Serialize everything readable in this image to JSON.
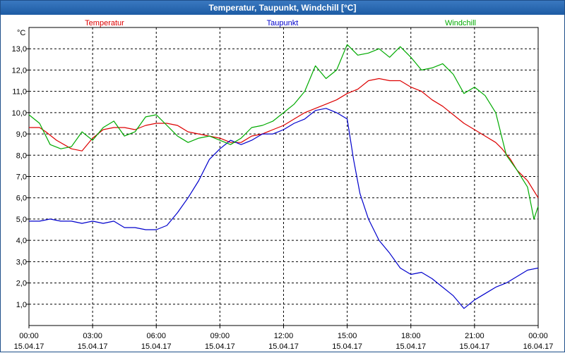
{
  "window": {
    "title": "Temperatur, Taupunkt, Windchill [°C]"
  },
  "chart_data": {
    "type": "line",
    "title": "Temperatur, Taupunkt, Windchill [°C]",
    "ylabel": "°C",
    "ylim": [
      0,
      14
    ],
    "yticks": [
      "1,0",
      "2,0",
      "3,0",
      "4,0",
      "5,0",
      "6,0",
      "7,0",
      "8,0",
      "9,0",
      "10,0",
      "11,0",
      "12,0",
      "13,0"
    ],
    "xlim_hours": [
      0,
      24
    ],
    "xticks": [
      {
        "time": "00:00",
        "date": "15.04.17"
      },
      {
        "time": "03:00",
        "date": "15.04.17"
      },
      {
        "time": "06:00",
        "date": "15.04.17"
      },
      {
        "time": "09:00",
        "date": "15.04.17"
      },
      {
        "time": "12:00",
        "date": "15.04.17"
      },
      {
        "time": "15:00",
        "date": "15.04.17"
      },
      {
        "time": "18:00",
        "date": "15.04.17"
      },
      {
        "time": "21:00",
        "date": "15.04.17"
      },
      {
        "time": "00:00",
        "date": "16.04.17"
      }
    ],
    "grid": true,
    "legend_position": "top",
    "series": [
      {
        "name": "Temperatur",
        "color": "#dd0000",
        "points": [
          [
            0,
            9.3
          ],
          [
            0.5,
            9.3
          ],
          [
            0.8,
            9.1
          ],
          [
            1.3,
            8.7
          ],
          [
            2,
            8.3
          ],
          [
            2.5,
            8.2
          ],
          [
            3,
            8.8
          ],
          [
            3.5,
            9.2
          ],
          [
            4,
            9.3
          ],
          [
            4.5,
            9.3
          ],
          [
            5,
            9.2
          ],
          [
            5.5,
            9.4
          ],
          [
            6,
            9.5
          ],
          [
            6.5,
            9.5
          ],
          [
            7,
            9.4
          ],
          [
            7.5,
            9.1
          ],
          [
            8,
            9.0
          ],
          [
            8.5,
            8.9
          ],
          [
            9,
            8.8
          ],
          [
            9.5,
            8.6
          ],
          [
            10,
            8.6
          ],
          [
            10.5,
            8.9
          ],
          [
            11,
            9.0
          ],
          [
            11.5,
            9.2
          ],
          [
            12,
            9.4
          ],
          [
            12.5,
            9.7
          ],
          [
            13,
            10.0
          ],
          [
            13.5,
            10.2
          ],
          [
            14,
            10.4
          ],
          [
            14.5,
            10.6
          ],
          [
            15,
            10.9
          ],
          [
            15.5,
            11.1
          ],
          [
            16,
            11.5
          ],
          [
            16.5,
            11.6
          ],
          [
            17,
            11.5
          ],
          [
            17.5,
            11.5
          ],
          [
            18,
            11.2
          ],
          [
            18.5,
            11.0
          ],
          [
            19,
            10.6
          ],
          [
            19.5,
            10.3
          ],
          [
            20,
            9.9
          ],
          [
            20.5,
            9.5
          ],
          [
            21,
            9.2
          ],
          [
            21.5,
            8.9
          ],
          [
            22,
            8.6
          ],
          [
            22.3,
            8.3
          ],
          [
            22.7,
            7.8
          ],
          [
            23,
            7.3
          ],
          [
            23.5,
            6.8
          ],
          [
            24,
            6.0
          ]
        ]
      },
      {
        "name": "Taupunkt",
        "color": "#0000cc",
        "points": [
          [
            0,
            4.9
          ],
          [
            0.5,
            4.9
          ],
          [
            1,
            5.0
          ],
          [
            1.5,
            4.9
          ],
          [
            2,
            4.9
          ],
          [
            2.5,
            4.8
          ],
          [
            3,
            4.9
          ],
          [
            3.5,
            4.8
          ],
          [
            4,
            4.9
          ],
          [
            4.5,
            4.6
          ],
          [
            5,
            4.6
          ],
          [
            5.5,
            4.5
          ],
          [
            6,
            4.5
          ],
          [
            6.5,
            4.7
          ],
          [
            7,
            5.3
          ],
          [
            7.5,
            6.0
          ],
          [
            8,
            6.8
          ],
          [
            8.5,
            7.8
          ],
          [
            9,
            8.3
          ],
          [
            9.5,
            8.7
          ],
          [
            10,
            8.5
          ],
          [
            10.5,
            8.7
          ],
          [
            11,
            9.0
          ],
          [
            11.5,
            9.0
          ],
          [
            12,
            9.2
          ],
          [
            12.5,
            9.5
          ],
          [
            13,
            9.7
          ],
          [
            13.5,
            10.1
          ],
          [
            14,
            10.2
          ],
          [
            14.5,
            10.0
          ],
          [
            15,
            9.7
          ],
          [
            15.3,
            7.8
          ],
          [
            15.6,
            6.2
          ],
          [
            16,
            5.0
          ],
          [
            16.5,
            4.0
          ],
          [
            17,
            3.4
          ],
          [
            17.5,
            2.7
          ],
          [
            18,
            2.4
          ],
          [
            18.5,
            2.5
          ],
          [
            19,
            2.2
          ],
          [
            19.5,
            1.8
          ],
          [
            20,
            1.4
          ],
          [
            20.5,
            0.8
          ],
          [
            21,
            1.2
          ],
          [
            21.5,
            1.5
          ],
          [
            22,
            1.8
          ],
          [
            22.5,
            2.0
          ],
          [
            23,
            2.3
          ],
          [
            23.5,
            2.6
          ],
          [
            24,
            2.7
          ]
        ]
      },
      {
        "name": "Windchill",
        "color": "#00aa00",
        "points": [
          [
            0,
            9.9
          ],
          [
            0.5,
            9.5
          ],
          [
            1,
            8.5
          ],
          [
            1.5,
            8.3
          ],
          [
            2,
            8.4
          ],
          [
            2.5,
            9.1
          ],
          [
            3,
            8.7
          ],
          [
            3.5,
            9.3
          ],
          [
            4,
            9.6
          ],
          [
            4.5,
            8.9
          ],
          [
            5,
            9.1
          ],
          [
            5.5,
            9.8
          ],
          [
            6,
            9.9
          ],
          [
            6.5,
            9.4
          ],
          [
            7,
            8.9
          ],
          [
            7.5,
            8.6
          ],
          [
            8,
            8.8
          ],
          [
            8.5,
            8.9
          ],
          [
            9,
            8.7
          ],
          [
            9.5,
            8.5
          ],
          [
            10,
            8.8
          ],
          [
            10.5,
            9.3
          ],
          [
            11,
            9.4
          ],
          [
            11.5,
            9.6
          ],
          [
            12,
            10.0
          ],
          [
            12.5,
            10.4
          ],
          [
            13,
            11.0
          ],
          [
            13.5,
            12.2
          ],
          [
            14,
            11.6
          ],
          [
            14.5,
            12.0
          ],
          [
            15,
            13.2
          ],
          [
            15.5,
            12.7
          ],
          [
            16,
            12.8
          ],
          [
            16.5,
            13.0
          ],
          [
            17,
            12.6
          ],
          [
            17.5,
            13.1
          ],
          [
            18,
            12.6
          ],
          [
            18.5,
            12.0
          ],
          [
            19,
            12.1
          ],
          [
            19.5,
            12.3
          ],
          [
            20,
            11.8
          ],
          [
            20.5,
            10.9
          ],
          [
            21,
            11.2
          ],
          [
            21.5,
            10.8
          ],
          [
            22,
            10.0
          ],
          [
            22.5,
            8.0
          ],
          [
            23,
            7.3
          ],
          [
            23.5,
            6.5
          ],
          [
            23.8,
            5.0
          ],
          [
            24,
            5.6
          ]
        ]
      }
    ]
  }
}
